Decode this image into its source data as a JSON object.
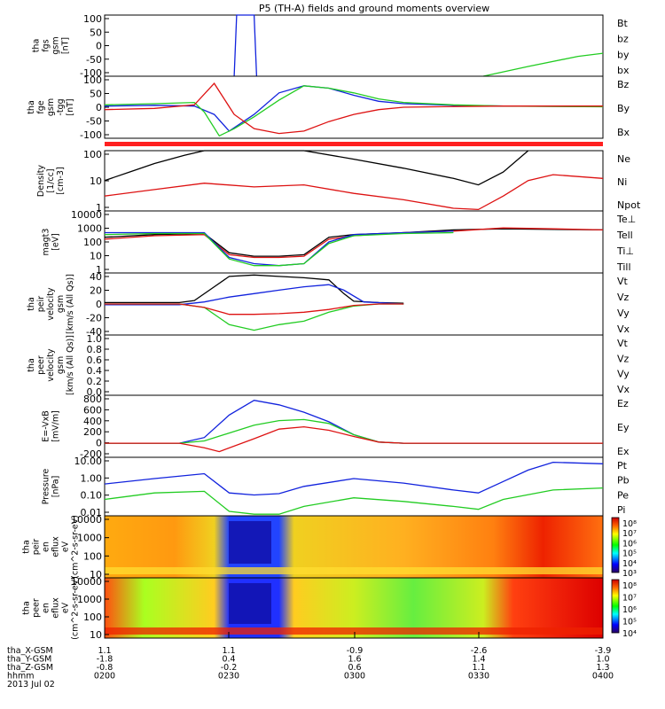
{
  "title": "P5 (TH-A) fields and ground moments overview",
  "time_axis": {
    "rows": [
      {
        "label": "tha_X-GSM",
        "values": [
          "1.1",
          "1.1",
          "-0.9",
          "-2.6",
          "-3.9"
        ]
      },
      {
        "label": "tha_Y-GSM",
        "values": [
          "-1.8",
          "0.4",
          "1.6",
          "1.4",
          "1.0"
        ]
      },
      {
        "label": "tha_Z-GSM",
        "values": [
          "-0.8",
          "-0.2",
          "0.6",
          "1.1",
          "1.3"
        ]
      },
      {
        "label": "hhmm",
        "values": [
          "0200",
          "0230",
          "0300",
          "0330",
          "0400"
        ]
      }
    ],
    "date": "2013 Jul 02"
  },
  "colors": {
    "black": "#000000",
    "red": "#dd1111",
    "green": "#22cc22",
    "blue": "#1122dd"
  },
  "colorbars": [
    {
      "labels": [
        "10⁸",
        "10⁷",
        "10⁶",
        "10⁵",
        "10⁴",
        "10³"
      ]
    },
    {
      "labels": [
        "10⁸",
        "10⁷",
        "10⁶",
        "10⁵",
        "10⁴"
      ]
    }
  ],
  "chart_data": [
    {
      "type": "line",
      "ylabel_lines": [
        "tha",
        "fgs",
        "gsm",
        "[nT]"
      ],
      "yticks": [
        "100",
        "50",
        "0",
        "-50",
        "-100"
      ],
      "ylim": [
        -100,
        100
      ],
      "legend": [
        {
          "name": "Bt",
          "color": "black"
        },
        {
          "name": "bz",
          "color": "red"
        },
        {
          "name": "by",
          "color": "green"
        },
        {
          "name": "bx",
          "color": "blue"
        }
      ],
      "series": [
        {
          "name": "bx",
          "color": "blue",
          "x": [
            0.26,
            0.265,
            0.3,
            0.305
          ],
          "y": [
            -100,
            100,
            100,
            -100
          ]
        },
        {
          "name": "by",
          "color": "green",
          "x": [
            0.76,
            0.85,
            0.95,
            1.0
          ],
          "y": [
            -100,
            -68,
            -35,
            -25
          ]
        }
      ]
    },
    {
      "type": "line",
      "ylabel_lines": [
        "tha",
        "fge",
        "gsm",
        "-tgg",
        "[nT]"
      ],
      "yticks": [
        "100",
        "50",
        "0",
        "-50",
        "-100"
      ],
      "ylim": [
        -130,
        130
      ],
      "legend": [
        {
          "name": "Bz",
          "color": "red"
        },
        {
          "name": "By",
          "color": "green"
        },
        {
          "name": "Bx",
          "color": "blue"
        }
      ],
      "series": [
        {
          "name": "Bx",
          "color": "blue",
          "x": [
            0.0,
            0.1,
            0.18,
            0.22,
            0.25,
            0.3,
            0.35,
            0.4,
            0.45,
            0.5,
            0.55,
            0.6,
            0.7,
            0.8,
            1.0
          ],
          "y": [
            5,
            8,
            5,
            -30,
            -100,
            -30,
            60,
            90,
            80,
            50,
            25,
            15,
            8,
            5,
            3
          ]
        },
        {
          "name": "By",
          "color": "green",
          "x": [
            0.0,
            0.1,
            0.18,
            0.2,
            0.23,
            0.26,
            0.3,
            0.35,
            0.4,
            0.45,
            0.5,
            0.55,
            0.6,
            0.7,
            0.8,
            1.0
          ],
          "y": [
            10,
            15,
            20,
            -20,
            -120,
            -90,
            -40,
            30,
            90,
            80,
            60,
            35,
            20,
            10,
            5,
            2
          ]
        },
        {
          "name": "Bz",
          "color": "red",
          "x": [
            0.0,
            0.1,
            0.18,
            0.22,
            0.26,
            0.3,
            0.35,
            0.4,
            0.45,
            0.5,
            0.55,
            0.6,
            0.7,
            0.8,
            1.0
          ],
          "y": [
            -10,
            -5,
            10,
            100,
            -30,
            -90,
            -110,
            -100,
            -60,
            -30,
            -10,
            0,
            3,
            5,
            5
          ]
        }
      ]
    },
    {
      "type": "line",
      "ylabel_lines": [
        "Density",
        "[1/cc]",
        "[cm-3]"
      ],
      "yticks": [
        "100",
        "10",
        "1"
      ],
      "ylim": [
        0.3,
        200
      ],
      "log": true,
      "legend": [
        {
          "name": "Ne",
          "color": "red"
        },
        {
          "name": "Ni",
          "color": "black"
        },
        {
          "name": "Npot",
          "color": "blue"
        }
      ],
      "series": [
        {
          "name": "Ni",
          "color": "black",
          "x": [
            0.0,
            0.05,
            0.1,
            0.16,
            0.2,
            0.25,
            0.3,
            0.4,
            0.5,
            0.6,
            0.7,
            0.75,
            0.8,
            0.85
          ],
          "y": [
            8,
            20,
            50,
            120,
            200,
            500,
            300,
            200,
            80,
            30,
            10,
            5,
            20,
            200
          ]
        },
        {
          "name": "Ne",
          "color": "red",
          "x": [
            0.0,
            0.1,
            0.2,
            0.3,
            0.4,
            0.5,
            0.6,
            0.7,
            0.75,
            0.8,
            0.85,
            0.9,
            1.0
          ],
          "y": [
            1.5,
            3,
            6,
            4,
            5,
            2,
            1,
            0.4,
            0.35,
            1.5,
            8,
            15,
            10
          ]
        }
      ]
    },
    {
      "type": "line",
      "ylabel_lines": [
        "magt3",
        "[eV]"
      ],
      "yticks": [
        "10000",
        "1000",
        "100",
        "10",
        "1"
      ],
      "ylim": [
        1,
        10000
      ],
      "log": true,
      "legend": [
        {
          "name": "Te⊥",
          "color": "red"
        },
        {
          "name": "Tell",
          "color": "black"
        },
        {
          "name": "Ti⊥",
          "color": "blue"
        },
        {
          "name": "Till",
          "color": "green"
        }
      ],
      "series": [
        {
          "name": "Tell",
          "color": "black",
          "x": [
            0.0,
            0.1,
            0.2,
            0.25,
            0.3,
            0.35,
            0.4,
            0.45,
            0.5,
            0.6,
            0.7,
            0.8,
            1.0
          ],
          "y": [
            200,
            300,
            350,
            20,
            12,
            12,
            15,
            200,
            300,
            400,
            600,
            700,
            600
          ]
        },
        {
          "name": "Te⊥",
          "color": "red",
          "x": [
            0.0,
            0.1,
            0.2,
            0.25,
            0.3,
            0.35,
            0.4,
            0.45,
            0.5,
            0.6,
            0.7,
            0.8,
            0.9,
            1.0
          ],
          "y": [
            150,
            250,
            300,
            15,
            10,
            10,
            12,
            150,
            250,
            400,
            500,
            800,
            700,
            600
          ]
        },
        {
          "name": "Ti⊥",
          "color": "blue",
          "x": [
            0.0,
            0.1,
            0.2,
            0.25,
            0.3,
            0.35,
            0.4,
            0.45,
            0.5,
            0.6,
            0.7
          ],
          "y": [
            400,
            400,
            400,
            10,
            4,
            3,
            4,
            100,
            300,
            400,
            500
          ]
        },
        {
          "name": "Till",
          "color": "green",
          "x": [
            0.0,
            0.1,
            0.2,
            0.25,
            0.3,
            0.35,
            0.4,
            0.45,
            0.5,
            0.6,
            0.7
          ],
          "y": [
            300,
            350,
            350,
            8,
            3,
            3,
            4,
            80,
            250,
            350,
            400
          ]
        }
      ]
    },
    {
      "type": "line",
      "ylabel_lines": [
        "tha",
        "peir",
        "velocity",
        "gsm",
        "[km/s (All Qs)]"
      ],
      "yticks": [
        "40",
        "20",
        "0",
        "-20",
        "-40"
      ],
      "ylim": [
        -45,
        45
      ],
      "legend": [
        {
          "name": "Vt",
          "color": "black"
        },
        {
          "name": "Vz",
          "color": "red"
        },
        {
          "name": "Vy",
          "color": "green"
        },
        {
          "name": "Vx",
          "color": "blue"
        }
      ],
      "series": [
        {
          "name": "Vt",
          "color": "black",
          "x": [
            0.0,
            0.15,
            0.18,
            0.22,
            0.25,
            0.3,
            0.35,
            0.4,
            0.45,
            0.48,
            0.5,
            0.55,
            0.6
          ],
          "y": [
            2,
            2,
            5,
            25,
            40,
            42,
            40,
            38,
            35,
            15,
            4,
            2,
            1
          ]
        },
        {
          "name": "Vx",
          "color": "blue",
          "x": [
            0.0,
            0.15,
            0.2,
            0.25,
            0.3,
            0.35,
            0.4,
            0.45,
            0.48,
            0.52,
            0.6
          ],
          "y": [
            -1,
            -1,
            3,
            10,
            15,
            20,
            25,
            28,
            20,
            3,
            0
          ]
        },
        {
          "name": "Vy",
          "color": "green",
          "x": [
            0.0,
            0.15,
            0.2,
            0.25,
            0.3,
            0.35,
            0.4,
            0.45,
            0.5,
            0.55,
            0.6
          ],
          "y": [
            0,
            0,
            -5,
            -30,
            -38,
            -30,
            -25,
            -12,
            -3,
            0,
            0
          ]
        },
        {
          "name": "Vz",
          "color": "red",
          "x": [
            0.0,
            0.15,
            0.2,
            0.25,
            0.3,
            0.35,
            0.4,
            0.45,
            0.5,
            0.55,
            0.6
          ],
          "y": [
            0,
            0,
            -5,
            -15,
            -15,
            -14,
            -12,
            -8,
            -2,
            0,
            0
          ]
        }
      ]
    },
    {
      "type": "line",
      "ylabel_lines": [
        "tha",
        "peer",
        "velocity",
        "gsm",
        "[km/s (All Qs)]"
      ],
      "yticks": [
        "1.0",
        "0.8",
        "0.6",
        "0.4",
        "0.2",
        "0.0"
      ],
      "ylim": [
        0,
        1
      ],
      "legend": [
        {
          "name": "Vt",
          "color": "black"
        },
        {
          "name": "Vz",
          "color": "red"
        },
        {
          "name": "Vy",
          "color": "green"
        },
        {
          "name": "Vx",
          "color": "blue"
        }
      ],
      "series": []
    },
    {
      "type": "line",
      "ylabel_lines": [
        "E=-VxB",
        "[mV/m]"
      ],
      "yticks": [
        "800",
        "600",
        "400",
        "200",
        "0",
        "-200"
      ],
      "ylim": [
        -250,
        850
      ],
      "legend": [
        {
          "name": "Ez",
          "color": "red"
        },
        {
          "name": "Ey",
          "color": "green"
        },
        {
          "name": "Ex",
          "color": "blue"
        }
      ],
      "series": [
        {
          "name": "Ex",
          "color": "blue",
          "x": [
            0.0,
            0.15,
            0.2,
            0.25,
            0.3,
            0.35,
            0.4,
            0.45,
            0.5,
            0.55,
            0.6,
            1.0
          ],
          "y": [
            0,
            0,
            100,
            500,
            760,
            680,
            550,
            380,
            150,
            20,
            0,
            0
          ]
        },
        {
          "name": "Ey",
          "color": "green",
          "x": [
            0.0,
            0.15,
            0.2,
            0.25,
            0.3,
            0.35,
            0.4,
            0.45,
            0.5,
            0.55,
            0.6,
            1.0
          ],
          "y": [
            0,
            0,
            40,
            180,
            320,
            400,
            420,
            350,
            150,
            20,
            0,
            0
          ]
        },
        {
          "name": "Ez",
          "color": "red",
          "x": [
            0.0,
            0.15,
            0.2,
            0.23,
            0.3,
            0.35,
            0.4,
            0.45,
            0.5,
            0.55,
            0.6,
            1.0
          ],
          "y": [
            0,
            0,
            -80,
            -150,
            80,
            250,
            290,
            230,
            120,
            20,
            0,
            0
          ]
        }
      ]
    },
    {
      "type": "line",
      "ylabel_lines": [
        "Pressure",
        "[nPa]"
      ],
      "yticks": [
        "10.00",
        "1.00",
        "0.10",
        "0.01"
      ],
      "ylim": [
        0.008,
        30
      ],
      "log": true,
      "legend": [
        {
          "name": "Pt",
          "color": "black"
        },
        {
          "name": "Pb",
          "color": "red"
        },
        {
          "name": "Pe",
          "color": "green"
        },
        {
          "name": "Pi",
          "color": "blue"
        }
      ],
      "series": [
        {
          "name": "Pi",
          "color": "blue",
          "x": [
            0.0,
            0.1,
            0.2,
            0.25,
            0.3,
            0.35,
            0.4,
            0.5,
            0.6,
            0.7,
            0.75,
            0.8,
            0.85,
            0.9,
            1.0
          ],
          "y": [
            0.7,
            1.5,
            3,
            0.2,
            0.15,
            0.18,
            0.5,
            1.5,
            0.8,
            0.3,
            0.2,
            1,
            5,
            15,
            12
          ]
        },
        {
          "name": "Pe",
          "color": "green",
          "x": [
            0.0,
            0.1,
            0.2,
            0.25,
            0.3,
            0.35,
            0.4,
            0.5,
            0.6,
            0.7,
            0.75,
            0.8,
            0.9,
            1.0
          ],
          "y": [
            0.08,
            0.2,
            0.25,
            0.015,
            0.01,
            0.01,
            0.03,
            0.1,
            0.06,
            0.03,
            0.02,
            0.08,
            0.3,
            0.4
          ]
        }
      ]
    },
    {
      "type": "heatmap",
      "ylabel_lines": [
        "tha",
        "peir",
        "en",
        "eflux",
        "eV",
        "(cm^2-s-sr-eV)"
      ],
      "yticks": [
        "10000",
        "1000",
        "100",
        "10"
      ],
      "colorbar_index": 0
    },
    {
      "type": "heatmap",
      "ylabel_lines": [
        "tha",
        "peer",
        "en",
        "eflux",
        "eV",
        "(cm^2-s-sr-eV)"
      ],
      "yticks": [
        "10000",
        "1000",
        "100",
        "10"
      ],
      "colorbar_index": 1
    }
  ]
}
